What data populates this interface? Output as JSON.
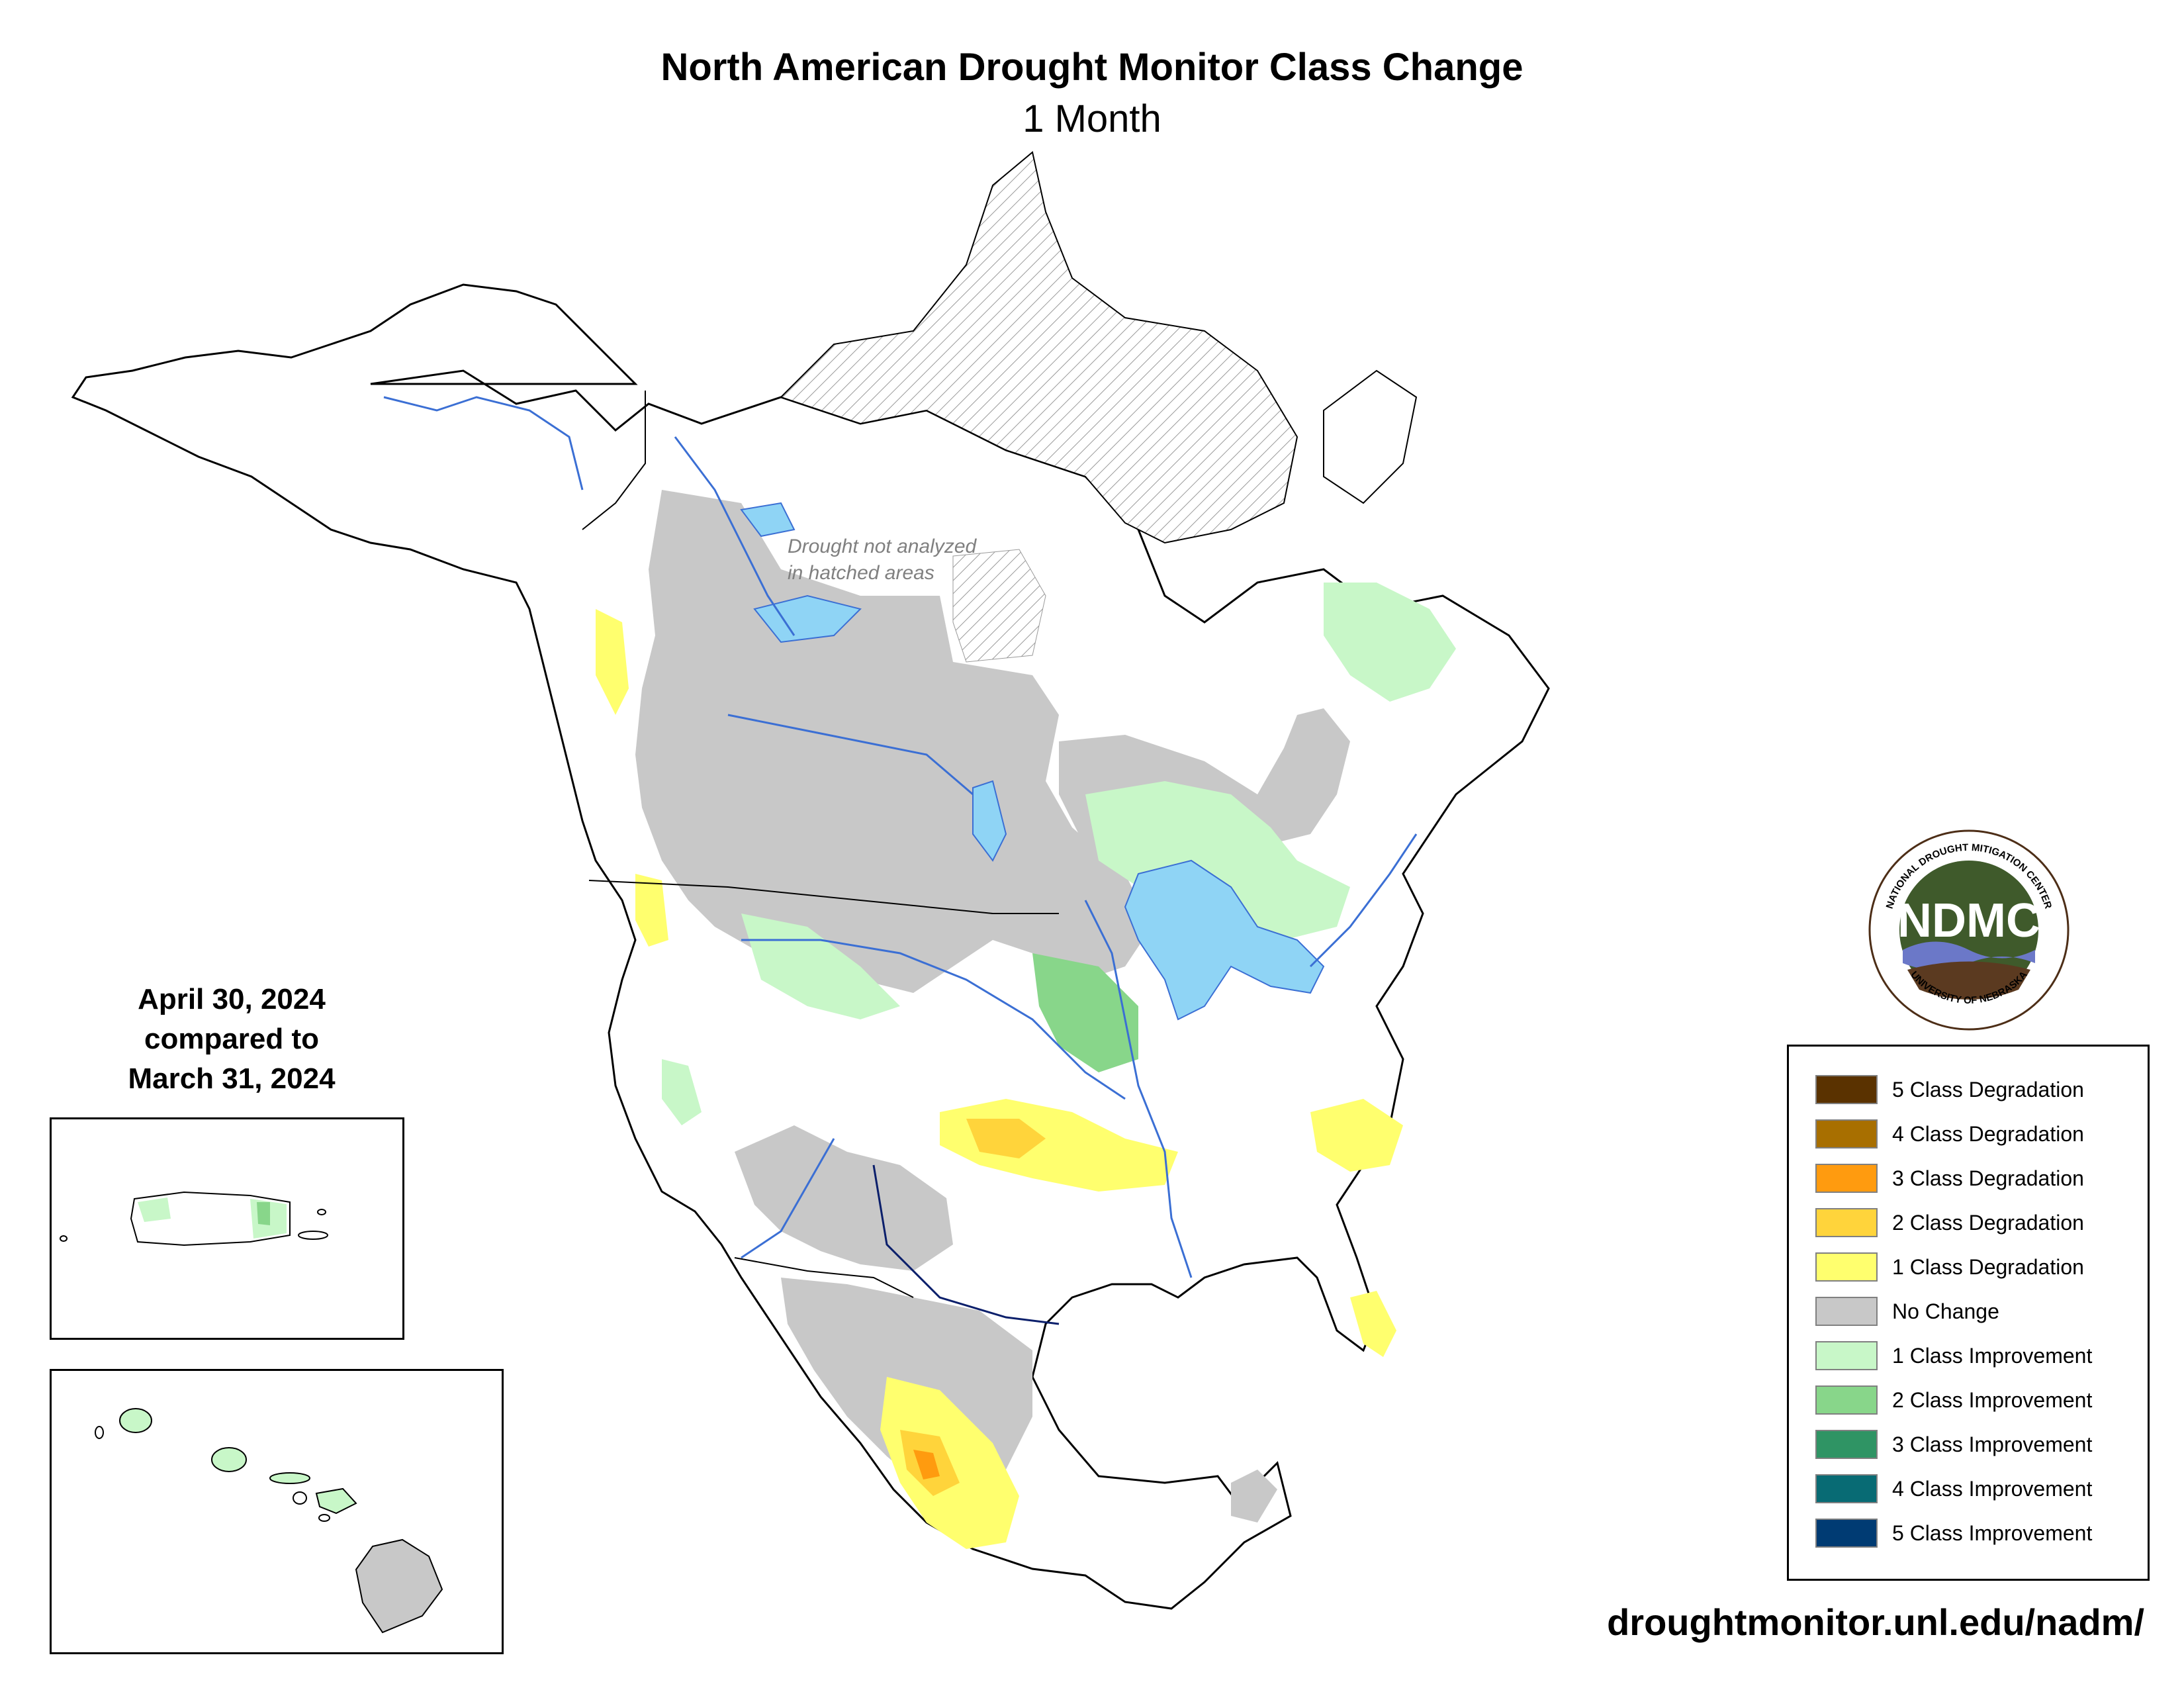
{
  "header": {
    "title": "North American Drought Monitor Class Change",
    "subtitle": "1 Month"
  },
  "map": {
    "hatch_note_line1": "Drought not analyzed",
    "hatch_note_line2": "in hatched areas"
  },
  "dates": {
    "line1": "April 30, 2024",
    "line2": "compared to",
    "line3": "March 31, 2024"
  },
  "logo": {
    "text": "NDMC",
    "ring_top": "NATIONAL DROUGHT MITIGATION CENTER",
    "ring_bottom": "UNIVERSITY OF NEBRASKA"
  },
  "legend": {
    "items": [
      {
        "label": "5 Class Degradation",
        "color": "#5a3200"
      },
      {
        "label": "4 Class Degradation",
        "color": "#a86f00"
      },
      {
        "label": "3 Class Degradation",
        "color": "#ff9b0f"
      },
      {
        "label": "2 Class Degradation",
        "color": "#ffd43b"
      },
      {
        "label": "1 Class Degradation",
        "color": "#ffff6e"
      },
      {
        "label": "No Change",
        "color": "#c8c8c8"
      },
      {
        "label": "1 Class Improvement",
        "color": "#c8f7c8"
      },
      {
        "label": "2 Class Improvement",
        "color": "#88d68a"
      },
      {
        "label": "3 Class Improvement",
        "color": "#2f9464"
      },
      {
        "label": "4 Class Improvement",
        "color": "#086b74"
      },
      {
        "label": "5 Class Improvement",
        "color": "#003b73"
      }
    ]
  },
  "footer": {
    "url": "droughtmonitor.unl.edu/nadm/"
  }
}
